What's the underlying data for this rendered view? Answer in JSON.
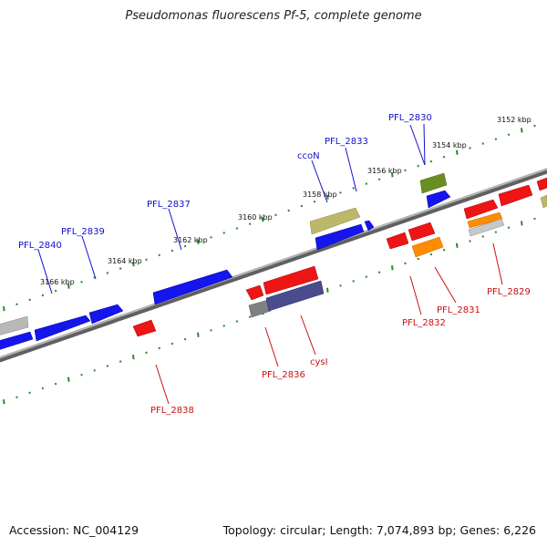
{
  "title": "Pseudomonas fluorescens Pf-5, complete genome",
  "accession": "Accession: NC_004129",
  "topology": "Topology: circular; Length: 7,074,893 bp; Genes: 6,226",
  "ticks": [
    "3152 kbp",
    "3154 kbp",
    "3156 kbp",
    "3158 kbp",
    "3160 kbp",
    "3162 kbp",
    "3164 kbp",
    "3166 kbp"
  ],
  "plus_labels": [
    "PFL_2830",
    "PFL_2833",
    "ccoN",
    "PFL_2837",
    "PFL_2839",
    "PFL_2840"
  ],
  "minus_labels": [
    "PFL_2829",
    "PFL_2831",
    "PFL_2832",
    "cysI",
    "PFL_2836",
    "PFL_2838"
  ],
  "colors": {
    "plus_gene": "#1010ee",
    "minus_gene": "#ee1010",
    "olive": "#6b8e23",
    "khaki": "#bdb76b",
    "orange": "#ff8c00",
    "slate": "#4b4b8f",
    "grey": "#a9a9a9",
    "backbone": "#808080",
    "tick": "#2a8a2a"
  }
}
